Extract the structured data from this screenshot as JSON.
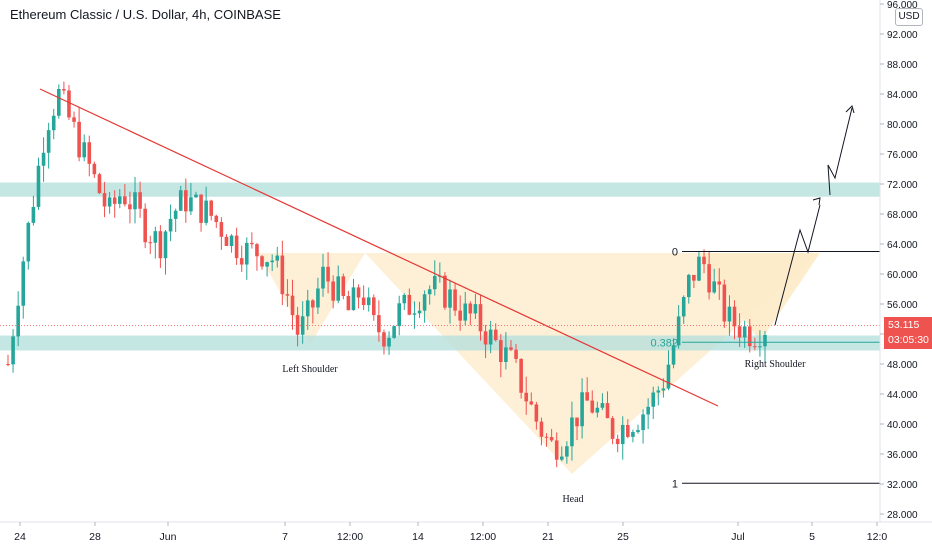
{
  "header": {
    "title": "Ethereum Classic / U.S. Dollar, 4h, COINBASE",
    "currency": "USD"
  },
  "last_price": {
    "value": "53.115",
    "countdown": "03:05:30",
    "color": "#ef5350"
  },
  "colors": {
    "up": "#26a69a",
    "down": "#ef5350",
    "zone": "#b2dfdb",
    "pattern_fill": "#fdebc8",
    "trendline": "#e53935",
    "fib_line": "#26a69a",
    "annotation": "#131722"
  },
  "chart_data": {
    "type": "candlestick",
    "symbol": "Ethereum Classic / U.S. Dollar",
    "interval": "4h",
    "exchange": "COINBASE",
    "x_ticks": [
      "24",
      "28",
      "Jun",
      "7",
      "12:00",
      "14",
      "12:00",
      "21",
      "25",
      "Jul",
      "5",
      "12:0"
    ],
    "y_ticks": [
      "96.000",
      "92.000",
      "88.000",
      "84.000",
      "80.000",
      "76.000",
      "72.000",
      "68.000",
      "64.000",
      "60.000",
      "56.000",
      "52.000",
      "48.000",
      "44.000",
      "40.000",
      "36.000",
      "32.000",
      "28.000"
    ],
    "ylim": [
      26,
      97
    ],
    "grid": false,
    "series_close": [
      48,
      60,
      70,
      80,
      84,
      80,
      76,
      72,
      68,
      71,
      69,
      66,
      64,
      68,
      70,
      69,
      68,
      66,
      64,
      63,
      63,
      62,
      58,
      52,
      55,
      60,
      58,
      55,
      58,
      53,
      52,
      55,
      56,
      58,
      58,
      57,
      55,
      54,
      52,
      50,
      48,
      44,
      40,
      37,
      38,
      41,
      43,
      41,
      39,
      40,
      41,
      43,
      46,
      52,
      59,
      62,
      58,
      54,
      53,
      52,
      53
    ],
    "zones": [
      {
        "low": 70.3,
        "high": 72.2
      },
      {
        "low": 49.8,
        "high": 51.8
      }
    ],
    "fib_levels": [
      {
        "label": "0",
        "value": 63.0
      },
      {
        "label": "0.382",
        "value": 50.9
      },
      {
        "label": "1",
        "value": 32.1
      }
    ],
    "annotations": [
      "Left Shoulder",
      "Head",
      "Right Shoulder"
    ]
  }
}
